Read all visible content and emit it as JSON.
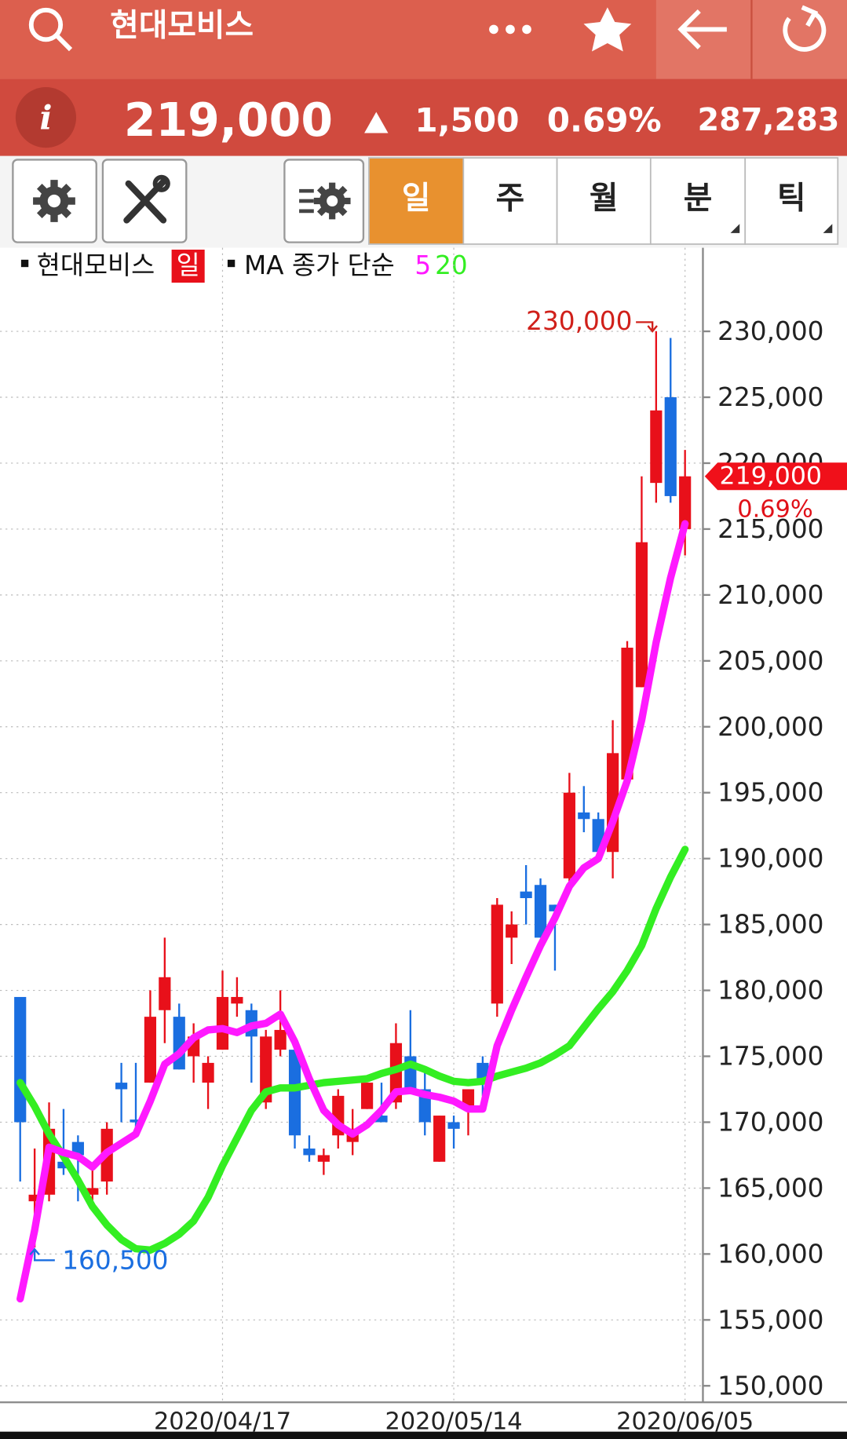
{
  "header": {
    "title": "현대모비스"
  },
  "quote": {
    "price": "219,000",
    "change": "1,500",
    "change_pct": "0.69%",
    "volume": "287,283"
  },
  "tabs": [
    "일",
    "주",
    "월",
    "분",
    "틱"
  ],
  "chart_data": {
    "type": "candlestick",
    "categories": [
      null,
      null,
      null,
      null,
      null,
      null,
      null,
      null,
      null,
      null,
      null,
      null,
      null,
      null,
      "2020/04/17",
      null,
      null,
      null,
      null,
      null,
      null,
      null,
      null,
      null,
      null,
      null,
      null,
      null,
      null,
      null,
      "2020/05/14",
      null,
      null,
      null,
      null,
      null,
      null,
      null,
      null,
      null,
      null,
      null,
      null,
      null,
      null,
      null,
      "2020/06/05"
    ],
    "series": [
      {
        "name": "현대모비스",
        "period": "일",
        "type": "candlestick",
        "up_color": "#e8101a",
        "down_color": "#1a6ee0",
        "open": [
          179500,
          164000,
          164500,
          167000,
          168500,
          164500,
          165500,
          173000,
          170200,
          173000,
          178500,
          178000,
          175000,
          173000,
          175500,
          179000,
          178500,
          171500,
          175500,
          175500,
          168000,
          167000,
          169000,
          168500,
          171000,
          170500,
          171500,
          175000,
          172500,
          167000,
          170000,
          171000,
          174500,
          179000,
          184000,
          187500,
          188000,
          186500,
          188500,
          193500,
          193000,
          190500,
          196000,
          203000,
          218500,
          225000,
          215000
        ],
        "high": [
          179500,
          168000,
          171500,
          171000,
          169000,
          166500,
          170000,
          174500,
          174500,
          180000,
          184000,
          179000,
          177500,
          175000,
          181500,
          181000,
          179000,
          177000,
          180000,
          175500,
          169000,
          168000,
          172500,
          171000,
          173000,
          173000,
          177500,
          178500,
          174000,
          170500,
          170500,
          172500,
          175000,
          187000,
          186000,
          189500,
          188500,
          186500,
          196500,
          195500,
          193500,
          200500,
          206500,
          219000,
          230000,
          229500,
          221000
        ],
        "low": [
          165500,
          160500,
          164000,
          166000,
          164000,
          163500,
          164500,
          170000,
          169500,
          173000,
          176000,
          174000,
          173000,
          171000,
          175500,
          178000,
          173000,
          171000,
          175000,
          168000,
          167000,
          166000,
          168000,
          167500,
          171000,
          170000,
          171000,
          172500,
          169000,
          167000,
          168000,
          169000,
          172000,
          178000,
          182000,
          185000,
          184000,
          181500,
          188000,
          192000,
          190500,
          188500,
          196000,
          203000,
          217000,
          217000,
          213000
        ],
        "close": [
          170000,
          164500,
          169500,
          166500,
          167500,
          165000,
          169500,
          172500,
          170000,
          178000,
          181000,
          174000,
          176500,
          174500,
          179500,
          179500,
          176500,
          176500,
          177000,
          169000,
          167500,
          167500,
          172000,
          169500,
          173000,
          170000,
          176000,
          172500,
          170000,
          170500,
          169500,
          172500,
          173000,
          186500,
          185000,
          187000,
          184000,
          186000,
          195000,
          193000,
          190500,
          198000,
          206000,
          214000,
          224000,
          217500,
          219000
        ]
      },
      {
        "name": "5",
        "type": "line",
        "color": "#ff19ff",
        "values": [
          156600,
          161800,
          168100,
          167700,
          167400,
          166600,
          167700,
          168400,
          169100,
          171600,
          174400,
          175200,
          176400,
          177000,
          177100,
          176800,
          177300,
          177500,
          178200,
          176100,
          173300,
          170900,
          169800,
          169100,
          169800,
          170900,
          172300,
          172400,
          172100,
          171900,
          171600,
          171000,
          171000,
          175800,
          178500,
          181000,
          183400,
          185500,
          187900,
          189300,
          190000,
          192800,
          195900,
          200500,
          206400,
          211300,
          215400
        ]
      },
      {
        "name": "20",
        "type": "line",
        "color": "#33ee22",
        "values": [
          173000,
          171200,
          169100,
          167400,
          165600,
          163600,
          162200,
          161100,
          160400,
          160300,
          160800,
          161500,
          162500,
          164300,
          166700,
          168800,
          170900,
          172300,
          172600,
          172600,
          172800,
          173000,
          173100,
          173200,
          173300,
          173700,
          174000,
          174400,
          174000,
          173500,
          173100,
          173000,
          173100,
          173500,
          173800,
          174100,
          174500,
          175100,
          175800,
          177200,
          178600,
          179900,
          181500,
          183400,
          186200,
          188600,
          190700
        ]
      }
    ],
    "ma_label": "MA 종가 단순",
    "ylim": [
      148750,
      234250
    ],
    "yticks": [
      {
        "value": 150000,
        "label": "150,000"
      },
      {
        "value": 155000,
        "label": "155,000"
      },
      {
        "value": 160000,
        "label": "160,000"
      },
      {
        "value": 165000,
        "label": "165,000"
      },
      {
        "value": 170000,
        "label": "170,000"
      },
      {
        "value": 175000,
        "label": "175,000"
      },
      {
        "value": 180000,
        "label": "180,000"
      },
      {
        "value": 185000,
        "label": "185,000"
      },
      {
        "value": 190000,
        "label": "190,000"
      },
      {
        "value": 195000,
        "label": "195,000"
      },
      {
        "value": 200000,
        "label": "200,000"
      },
      {
        "value": 205000,
        "label": "205,000"
      },
      {
        "value": 210000,
        "label": "210,000"
      },
      {
        "value": 215000,
        "label": "215,000"
      },
      {
        "value": 220000,
        "label": "220,000"
      },
      {
        "value": 225000,
        "label": "225,000"
      },
      {
        "value": 230000,
        "label": "230,000"
      }
    ],
    "grid": true,
    "annotations": [
      {
        "value": 230000,
        "label": "230,000"
      },
      {
        "value": 160500,
        "label": "160,500"
      }
    ],
    "last_price": {
      "value": 219000,
      "label": "219,000"
    },
    "last_change": {
      "value": 0.69,
      "label": "0.69%"
    }
  }
}
